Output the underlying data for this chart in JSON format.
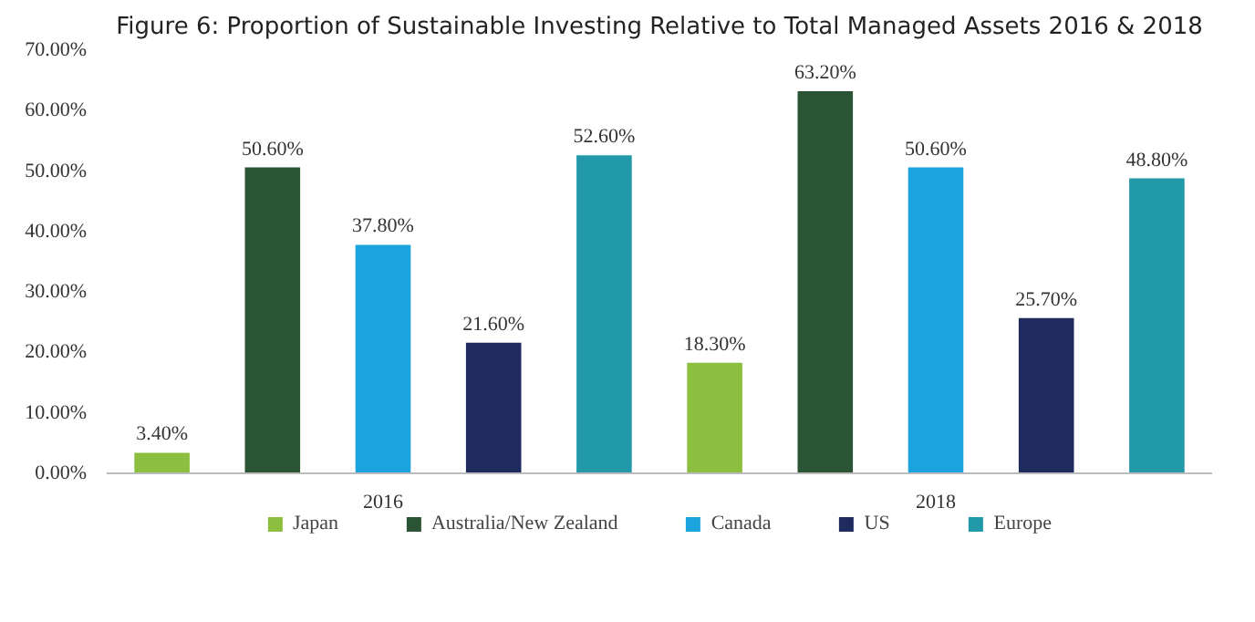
{
  "chart_data": {
    "type": "bar",
    "title": "Figure 6: Proportion of Sustainable Investing Relative to Total Managed Assets 2016 & 2018",
    "categories": [
      "2016",
      "2018"
    ],
    "series": [
      {
        "name": "Japan",
        "color": "#8cbf3f",
        "values": [
          3.4,
          18.3
        ],
        "value_labels": [
          "3.40%",
          "18.30%"
        ]
      },
      {
        "name": "Australia/New Zealand",
        "color": "#2a5434",
        "values": [
          50.6,
          63.2
        ],
        "value_labels": [
          "50.60%",
          "63.20%"
        ]
      },
      {
        "name": "Canada",
        "color": "#1ba3de",
        "values": [
          37.8,
          50.6
        ],
        "value_labels": [
          "37.80%",
          "50.60%"
        ]
      },
      {
        "name": "US",
        "color": "#1f2b5e",
        "values": [
          21.6,
          25.7
        ],
        "value_labels": [
          "21.60%",
          "25.70%"
        ]
      },
      {
        "name": "Europe",
        "color": "#2199a9",
        "values": [
          52.6,
          48.8
        ],
        "value_labels": [
          "52.60%",
          "48.80%"
        ]
      }
    ],
    "ylim": [
      0,
      70
    ],
    "yticks": [
      {
        "value": 0,
        "label": "0.00%"
      },
      {
        "value": 10,
        "label": "10.00%"
      },
      {
        "value": 20,
        "label": "20.00%"
      },
      {
        "value": 30,
        "label": "30.00%"
      },
      {
        "value": 40,
        "label": "40.00%"
      },
      {
        "value": 50,
        "label": "50.00%"
      },
      {
        "value": 60,
        "label": "60.00%"
      },
      {
        "value": 70,
        "label": "70.00%"
      }
    ],
    "grid": false,
    "legend": "bottom"
  }
}
